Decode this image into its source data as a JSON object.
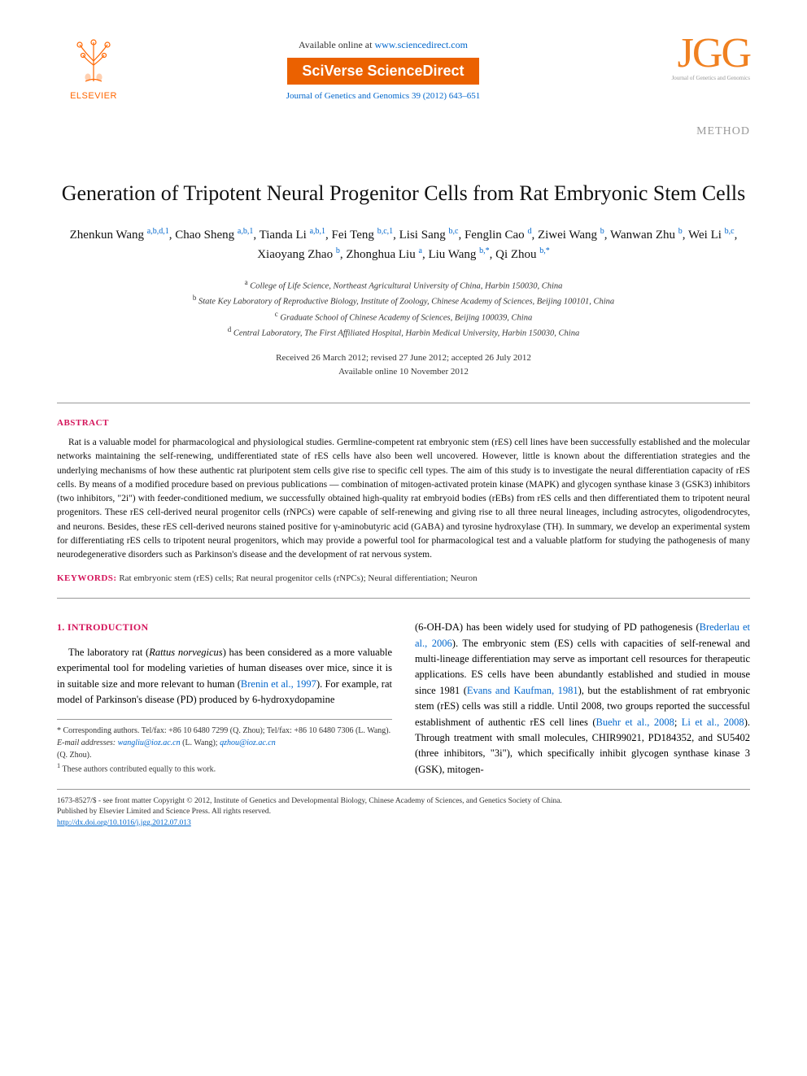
{
  "header": {
    "elsevier_label": "ELSEVIER",
    "available_prefix": "Available online at ",
    "available_url": "www.sciencedirect.com",
    "sciverse": "SciVerse ScienceDirect",
    "journal_ref": "Journal of Genetics and Genomics 39 (2012) 643–651",
    "jgg_logo": "JGG",
    "jgg_sub": "Journal of Genetics and Genomics"
  },
  "method_label": "METHOD",
  "title": "Generation of Tripotent Neural Progenitor Cells from Rat Embryonic Stem Cells",
  "authors": [
    {
      "name": "Zhenkun Wang",
      "sup": "a,b,d,1"
    },
    {
      "name": "Chao Sheng",
      "sup": "a,b,1"
    },
    {
      "name": "Tianda Li",
      "sup": "a,b,1"
    },
    {
      "name": "Fei Teng",
      "sup": "b,c,1"
    },
    {
      "name": "Lisi Sang",
      "sup": "b,c"
    },
    {
      "name": "Fenglin Cao",
      "sup": "d"
    },
    {
      "name": "Ziwei Wang",
      "sup": "b"
    },
    {
      "name": "Wanwan Zhu",
      "sup": "b"
    },
    {
      "name": "Wei Li",
      "sup": "b,c"
    },
    {
      "name": "Xiaoyang Zhao",
      "sup": "b"
    },
    {
      "name": "Zhonghua Liu",
      "sup": "a"
    },
    {
      "name": "Liu Wang",
      "sup": "b,*"
    },
    {
      "name": "Qi Zhou",
      "sup": "b,*"
    }
  ],
  "affiliations": {
    "a": "College of Life Science, Northeast Agricultural University of China, Harbin 150030, China",
    "b": "State Key Laboratory of Reproductive Biology, Institute of Zoology, Chinese Academy of Sciences, Beijing 100101, China",
    "c": "Graduate School of Chinese Academy of Sciences, Beijing 100039, China",
    "d": "Central Laboratory, The First Affiliated Hospital, Harbin Medical University, Harbin 150030, China"
  },
  "dates": {
    "line1": "Received 26 March 2012; revised 27 June 2012; accepted 26 July 2012",
    "line2": "Available online 10 November 2012"
  },
  "abstract_heading": "ABSTRACT",
  "abstract_text": "Rat is a valuable model for pharmacological and physiological studies. Germline-competent rat embryonic stem (rES) cell lines have been successfully established and the molecular networks maintaining the self-renewing, undifferentiated state of rES cells have also been well uncovered. However, little is known about the differentiation strategies and the underlying mechanisms of how these authentic rat pluripotent stem cells give rise to specific cell types. The aim of this study is to investigate the neural differentiation capacity of rES cells. By means of a modified procedure based on previous publications — combination of mitogen-activated protein kinase (MAPK) and glycogen synthase kinase 3 (GSK3) inhibitors (two inhibitors, \"2i\") with feeder-conditioned medium, we successfully obtained high-quality rat embryoid bodies (rEBs) from rES cells and then differentiated them to tripotent neural progenitors. These rES cell-derived neural progenitor cells (rNPCs) were capable of self-renewing and giving rise to all three neural lineages, including astrocytes, oligodendrocytes, and neurons. Besides, these rES cell-derived neurons stained positive for γ-aminobutyric acid (GABA) and tyrosine hydroxylase (TH). In summary, we develop an experimental system for differentiating rES cells to tripotent neural progenitors, which may provide a powerful tool for pharmacological test and a valuable platform for studying the pathogenesis of many neurodegenerative disorders such as Parkinson's disease and the development of rat nervous system.",
  "keywords_label": "KEYWORDS:",
  "keywords_text": " Rat embryonic stem (rES) cells; Rat neural progenitor cells (rNPCs); Neural differentiation; Neuron",
  "intro_heading": "1. INTRODUCTION",
  "col1_p1_a": "The laboratory rat (",
  "col1_p1_species": "Rattus norvegicus",
  "col1_p1_b": ") has been considered as a more valuable experimental tool for modeling varieties of human diseases over mice, since it is in suitable size and more relevant to human (",
  "col1_p1_cite": "Brenin et al., 1997",
  "col1_p1_c": "). For example, rat model of Parkinson's disease (PD) produced by 6-hydroxydopamine",
  "footnotes": {
    "corr": "* Corresponding authors. Tel/fax: +86 10 6480 7299 (Q. Zhou); Tel/fax: +86 10 6480 7306 (L. Wang).",
    "email_label": "E-mail addresses:",
    "email1": "wangliu@ioz.ac.cn",
    "email1_who": " (L. Wang); ",
    "email2": "qzhou@ioz.ac.cn",
    "email2_who": " (Q. Zhou).",
    "equal": "These authors contributed equally to this work."
  },
  "col2_a": "(6-OH-DA) has been widely used for studying of PD pathogenesis (",
  "col2_cite1": "Brederlau et al., 2006",
  "col2_b": "). The embryonic stem (ES) cells with capacities of self-renewal and multi-lineage differentiation may serve as important cell resources for therapeutic applications. ES cells have been abundantly established and studied in mouse since 1981 (",
  "col2_cite2": "Evans and Kaufman, 1981",
  "col2_c": "), but the establishment of rat embryonic stem (rES) cells was still a riddle. Until 2008, two groups reported the successful establishment of authentic rES cell lines (",
  "col2_cite3": "Buehr et al., 2008",
  "col2_sep": "; ",
  "col2_cite4": "Li et al., 2008",
  "col2_d": "). Through treatment with small molecules, CHIR99021, PD184352, and SU5402 (three inhibitors, \"3i\"), which specifically inhibit glycogen synthase kinase 3 (GSK), mitogen-",
  "bottom": {
    "line1": "1673-8527/$ - see front matter Copyright © 2012, Institute of Genetics and Developmental Biology, Chinese Academy of Sciences, and Genetics Society of China.",
    "line2": "Published by Elsevier Limited and Science Press. All rights reserved.",
    "doi": "http://dx.doi.org/10.1016/j.jgg.2012.07.013"
  },
  "colors": {
    "accent": "#d4145a",
    "link": "#0066cc",
    "orange": "#eb6100",
    "jgg": "#f08020"
  }
}
